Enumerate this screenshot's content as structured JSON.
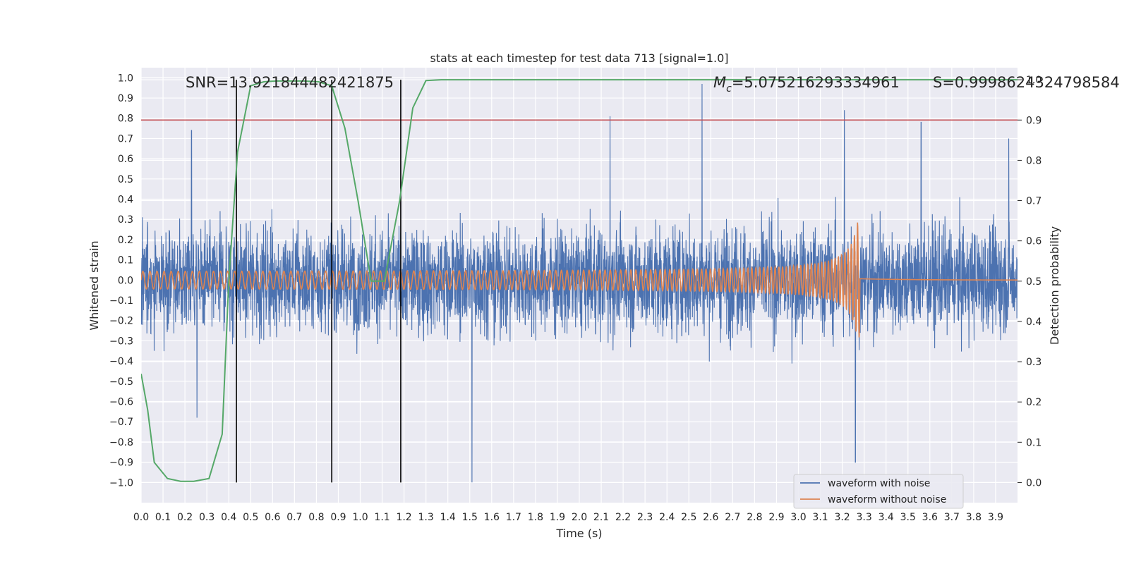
{
  "chart_data": {
    "type": "line",
    "title": "stats at each timestep for test data 713 [signal=1.0]",
    "xlabel": "Time (s)",
    "ylabel_left": "Whitened strain",
    "ylabel_right": "Detection probability",
    "xlim": [
      0.0,
      4.0
    ],
    "ylim_left": [
      -1.1,
      1.05
    ],
    "ylim_right": [
      -0.05,
      1.03
    ],
    "x_ticks": [
      "0.0",
      "0.1",
      "0.2",
      "0.3",
      "0.4",
      "0.5",
      "0.6",
      "0.7",
      "0.8",
      "0.9",
      "1.0",
      "1.1",
      "1.2",
      "1.3",
      "1.4",
      "1.5",
      "1.6",
      "1.7",
      "1.8",
      "1.9",
      "2.0",
      "2.1",
      "2.2",
      "2.3",
      "2.4",
      "2.5",
      "2.6",
      "2.7",
      "2.8",
      "2.9",
      "3.0",
      "3.1",
      "3.2",
      "3.3",
      "3.4",
      "3.5",
      "3.6",
      "3.7",
      "3.8",
      "3.9"
    ],
    "y_ticks_left": [
      "1.0",
      "0.9",
      "0.8",
      "0.7",
      "0.6",
      "0.5",
      "0.4",
      "0.3",
      "0.2",
      "0.1",
      "0.0",
      "−0.1",
      "−0.2",
      "−0.3",
      "−0.4",
      "−0.5",
      "−0.6",
      "−0.7",
      "−0.8",
      "−0.9",
      "−1.0"
    ],
    "y_ticks_right": [
      "1.0",
      "0.9",
      "0.8",
      "0.7",
      "0.6",
      "0.5",
      "0.4",
      "0.3",
      "0.2",
      "0.1",
      "0.0"
    ],
    "annotations": {
      "snr": "SNR=13.921844482421875",
      "mc_symbol": "M",
      "mc_sub": "c",
      "mc_value": "=5.075216293334961",
      "s": "S=0.9998624324798584"
    },
    "threshold_right": 0.9,
    "vertical_lines_x": [
      0.435,
      0.87,
      1.185
    ],
    "series": [
      {
        "name": "waveform with noise",
        "color": "#4c72b0",
        "axis": "left",
        "kind": "noise",
        "t_range": [
          0.0,
          4.0
        ],
        "typical_amplitude": 0.3,
        "peaks": [
          {
            "t": 0.23,
            "v": 0.74
          },
          {
            "t": 0.255,
            "v": -0.68
          },
          {
            "t": 0.87,
            "v": -0.88
          },
          {
            "t": 1.51,
            "v": -1.0
          },
          {
            "t": 2.14,
            "v": 0.81
          },
          {
            "t": 2.56,
            "v": 0.97
          },
          {
            "t": 3.21,
            "v": 0.84
          },
          {
            "t": 3.26,
            "v": -0.9
          },
          {
            "t": 3.56,
            "v": 0.78
          },
          {
            "t": 3.96,
            "v": 0.7
          }
        ]
      },
      {
        "name": "waveform without noise",
        "color": "#dd8452",
        "axis": "left",
        "kind": "chirp",
        "merger_t": 3.27,
        "amp_start": 0.04,
        "amp_peak": 0.3,
        "freq_start_hz": 31,
        "freq_end_hz": 70
      },
      {
        "name": "detection probability",
        "color": "#55a868",
        "axis": "right",
        "kind": "line",
        "x": [
          0.0,
          0.03,
          0.06,
          0.12,
          0.18,
          0.24,
          0.31,
          0.37,
          0.4,
          0.44,
          0.5,
          0.56,
          0.62,
          0.68,
          0.74,
          0.81,
          0.87,
          0.93,
          0.99,
          1.05,
          1.11,
          1.18,
          1.24,
          1.3,
          1.37,
          1.5,
          2.0,
          2.5,
          3.0,
          3.5,
          4.0
        ],
        "y": [
          0.27,
          0.18,
          0.05,
          0.01,
          0.003,
          0.003,
          0.01,
          0.12,
          0.5,
          0.82,
          0.985,
          0.995,
          0.997,
          0.997,
          0.997,
          0.995,
          0.985,
          0.88,
          0.7,
          0.5,
          0.5,
          0.7,
          0.93,
          0.998,
          1.0,
          1.0,
          1.0,
          1.0,
          1.0,
          1.0,
          1.0
        ]
      }
    ],
    "legend": [
      "waveform with noise",
      "waveform without noise"
    ],
    "legend_position": "lower-right"
  }
}
